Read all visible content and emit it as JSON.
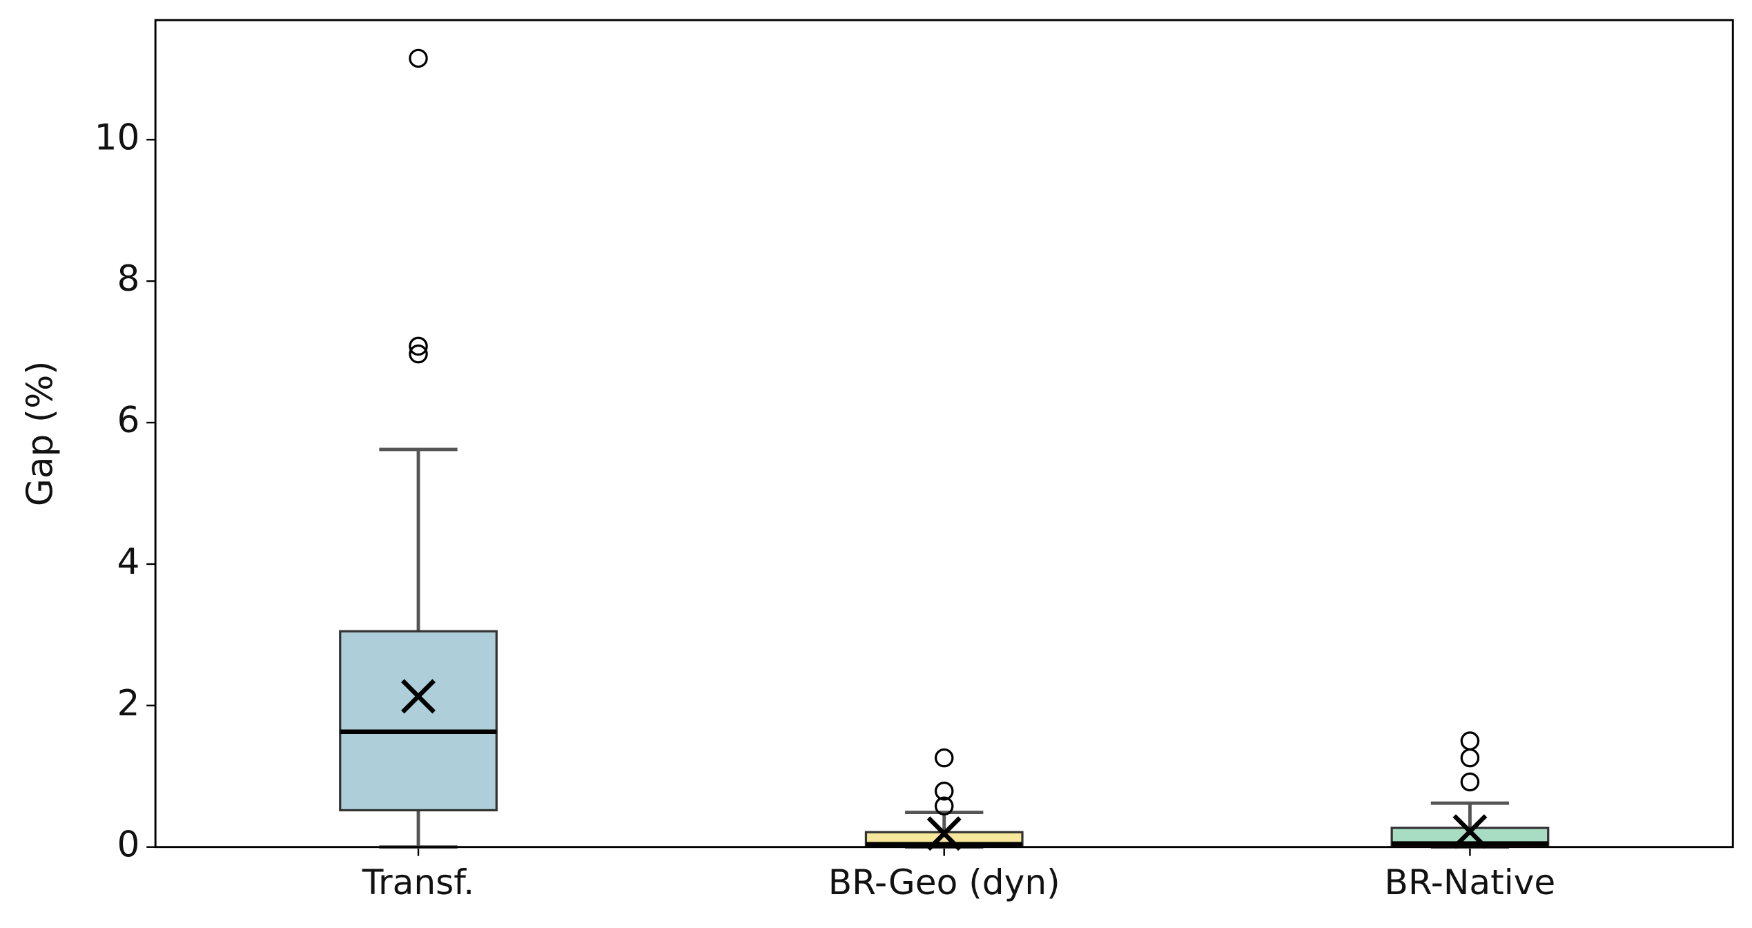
{
  "chart_data": {
    "type": "box",
    "ylabel": "Gap (%)",
    "categories": [
      "Transf.",
      "BR-Geo (dyn)",
      "BR-Native"
    ],
    "colors": [
      "#aecfd9",
      "#f5e79b",
      "#a8dcc3"
    ],
    "whisker_low": [
      0,
      0,
      0
    ],
    "q1": [
      0.52,
      0.02,
      0.02
    ],
    "median": [
      1.63,
      0.04,
      0.05
    ],
    "q3": [
      3.05,
      0.21,
      0.27
    ],
    "whisker_high": [
      5.62,
      0.49,
      0.62
    ],
    "mean": [
      2.13,
      0.19,
      0.22
    ],
    "outliers": [
      [
        11.15,
        7.08,
        6.97
      ],
      [
        1.26,
        0.79,
        0.58
      ],
      [
        1.5,
        1.26,
        0.92
      ]
    ],
    "ylim": [
      0,
      11.69
    ],
    "yticks": [
      0,
      2,
      4,
      6,
      8,
      10
    ]
  }
}
